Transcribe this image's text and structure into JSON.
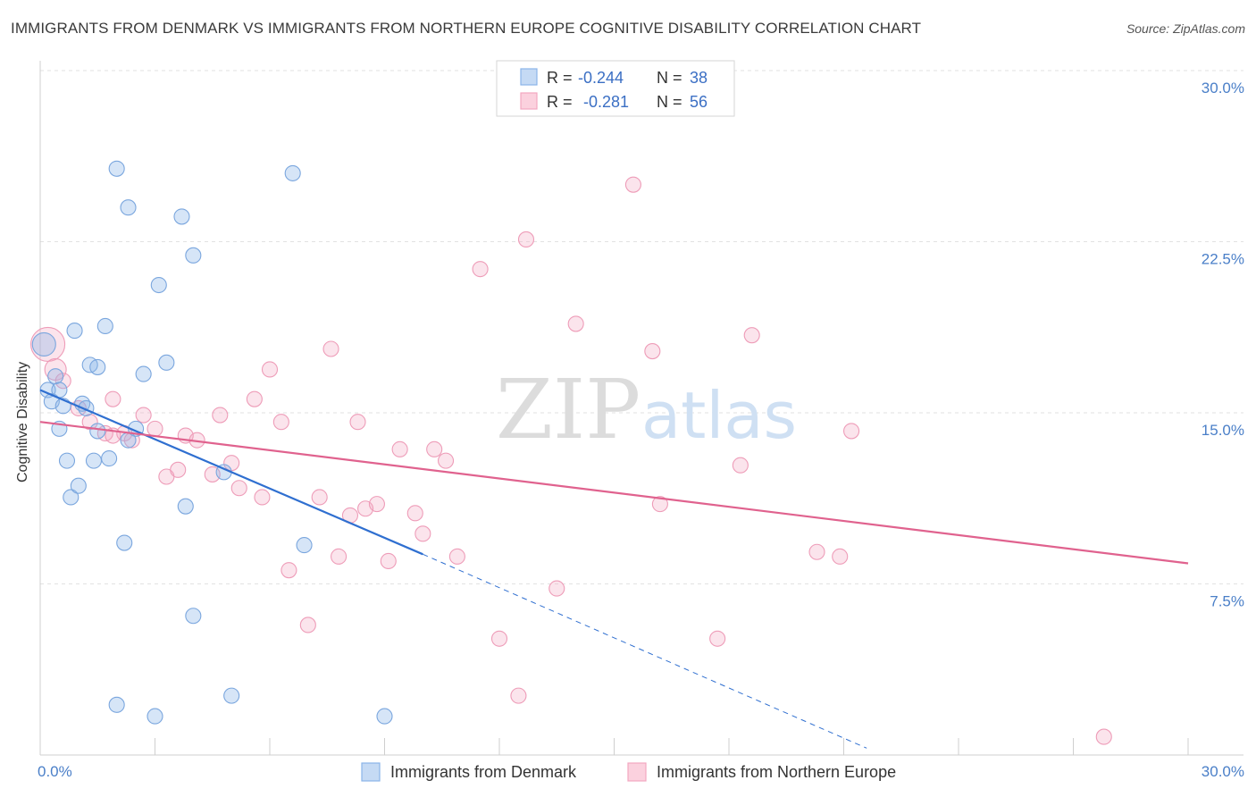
{
  "title": "IMMIGRANTS FROM DENMARK VS IMMIGRANTS FROM NORTHERN EUROPE COGNITIVE DISABILITY CORRELATION CHART",
  "source": "Source: ZipAtlas.com",
  "watermark": {
    "zip": "ZIP",
    "atlas": "atlas"
  },
  "stats": {
    "r_label": "R =",
    "n_label": "N =",
    "rows": [
      {
        "r": "-0.244",
        "n": "38"
      },
      {
        "r": "-0.281",
        "n": "56"
      }
    ]
  },
  "chart_data": {
    "type": "scatter",
    "title": "IMMIGRANTS FROM DENMARK VS IMMIGRANTS FROM NORTHERN EUROPE COGNITIVE DISABILITY CORRELATION CHART",
    "xlabel": "",
    "ylabel": "Cognitive Disability",
    "xlim": [
      0,
      30
    ],
    "ylim": [
      0,
      30
    ],
    "x_tick_labels": [
      "0.0%",
      "30.0%"
    ],
    "y_ticks": [
      7.5,
      15.0,
      22.5,
      30.0
    ],
    "y_tick_labels": [
      "7.5%",
      "15.0%",
      "22.5%",
      "30.0%"
    ],
    "grid": true,
    "legend_position": "bottom-center",
    "colors": {
      "denmark": "#8ab4e8",
      "denmark_line": "#2f6fd0",
      "northern": "#f2a7c0",
      "northern_line": "#e0628e"
    },
    "series": [
      {
        "name": "Immigrants from Denmark",
        "color": "#8ab4e8",
        "points": [
          [
            0.1,
            18.0
          ],
          [
            0.2,
            16.0
          ],
          [
            0.3,
            15.5
          ],
          [
            0.4,
            16.6
          ],
          [
            0.5,
            14.3
          ],
          [
            0.6,
            15.3
          ],
          [
            0.7,
            12.9
          ],
          [
            0.8,
            11.3
          ],
          [
            1.0,
            11.8
          ],
          [
            1.1,
            15.4
          ],
          [
            0.9,
            18.6
          ],
          [
            1.2,
            15.2
          ],
          [
            1.3,
            17.1
          ],
          [
            1.5,
            17.0
          ],
          [
            1.5,
            14.2
          ],
          [
            1.7,
            18.8
          ],
          [
            1.8,
            13.0
          ],
          [
            1.4,
            12.9
          ],
          [
            2.0,
            25.7
          ],
          [
            2.2,
            9.3
          ],
          [
            2.3,
            24.0
          ],
          [
            2.5,
            14.3
          ],
          [
            2.3,
            13.8
          ],
          [
            2.7,
            16.7
          ],
          [
            3.1,
            20.6
          ],
          [
            3.3,
            17.2
          ],
          [
            3.7,
            23.6
          ],
          [
            3.8,
            10.9
          ],
          [
            4.0,
            21.9
          ],
          [
            4.0,
            6.1
          ],
          [
            4.8,
            12.4
          ],
          [
            5.0,
            2.6
          ],
          [
            6.6,
            25.5
          ],
          [
            6.9,
            9.2
          ],
          [
            9.0,
            1.7
          ],
          [
            2.0,
            2.2
          ],
          [
            3.0,
            1.7
          ],
          [
            0.5,
            16.0
          ]
        ],
        "trend": {
          "x0": 0,
          "y0": 16.0,
          "x1": 10.0,
          "y1": 8.8,
          "dash_to_x": 21.6,
          "dash_to_y": 0.3
        }
      },
      {
        "name": "Immigrants from Northern Europe",
        "color": "#f2a7c0",
        "points": [
          [
            0.2,
            18.0
          ],
          [
            0.4,
            16.9
          ],
          [
            0.6,
            16.4
          ],
          [
            1.0,
            15.2
          ],
          [
            1.3,
            14.6
          ],
          [
            1.7,
            14.1
          ],
          [
            1.9,
            15.6
          ],
          [
            2.2,
            14.1
          ],
          [
            2.4,
            13.8
          ],
          [
            2.7,
            14.9
          ],
          [
            3.0,
            14.3
          ],
          [
            3.3,
            12.2
          ],
          [
            3.6,
            12.5
          ],
          [
            3.8,
            14.0
          ],
          [
            4.1,
            13.8
          ],
          [
            4.5,
            12.3
          ],
          [
            4.7,
            14.9
          ],
          [
            5.0,
            12.8
          ],
          [
            5.2,
            11.7
          ],
          [
            5.6,
            15.6
          ],
          [
            5.8,
            11.3
          ],
          [
            6.0,
            16.9
          ],
          [
            6.3,
            14.6
          ],
          [
            6.5,
            8.1
          ],
          [
            7.0,
            5.7
          ],
          [
            7.3,
            11.3
          ],
          [
            7.6,
            17.8
          ],
          [
            7.8,
            8.7
          ],
          [
            8.1,
            10.5
          ],
          [
            8.3,
            14.6
          ],
          [
            8.5,
            10.8
          ],
          [
            8.8,
            11.0
          ],
          [
            9.1,
            8.5
          ],
          [
            9.4,
            13.4
          ],
          [
            9.8,
            10.6
          ],
          [
            10.0,
            9.7
          ],
          [
            10.3,
            13.4
          ],
          [
            10.6,
            12.9
          ],
          [
            10.9,
            8.7
          ],
          [
            11.5,
            21.3
          ],
          [
            12.0,
            5.1
          ],
          [
            12.5,
            2.6
          ],
          [
            12.7,
            22.6
          ],
          [
            13.5,
            7.3
          ],
          [
            14.0,
            18.9
          ],
          [
            15.5,
            25.0
          ],
          [
            16.0,
            17.7
          ],
          [
            16.2,
            11.0
          ],
          [
            17.7,
            5.1
          ],
          [
            18.3,
            12.7
          ],
          [
            18.6,
            18.4
          ],
          [
            20.3,
            8.9
          ],
          [
            20.9,
            8.7
          ],
          [
            21.2,
            14.2
          ],
          [
            27.8,
            0.8
          ],
          [
            1.9,
            14.0
          ]
        ],
        "trend": {
          "x0": 0,
          "y0": 14.6,
          "x1": 30,
          "y1": 8.4
        }
      }
    ]
  }
}
